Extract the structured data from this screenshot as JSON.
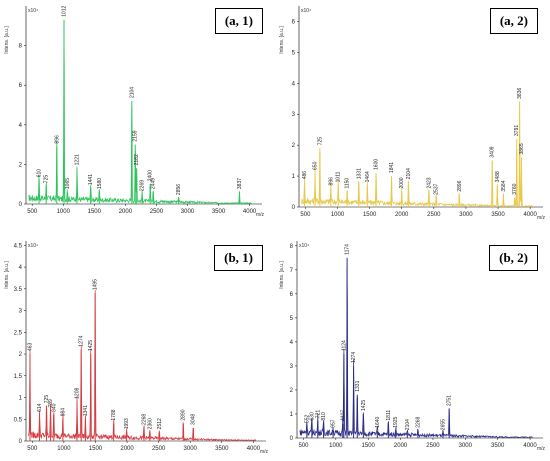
{
  "chart_data": [
    {
      "type": "line",
      "title": "(a, 1)",
      "ylabel": "Intens. [a.u.]",
      "xlabel": "m/z",
      "exponent": "x10⁴",
      "color": "#2bc45a",
      "xlim": [
        400,
        4200
      ],
      "ylim": [
        0,
        10
      ],
      "xticks": [
        500,
        1000,
        1500,
        2000,
        2500,
        3000,
        3500,
        4000
      ],
      "yticks": [
        0,
        2,
        4,
        6,
        8
      ],
      "peaks": [
        {
          "x": 610,
          "y": 1.2,
          "label": "610"
        },
        {
          "x": 725,
          "y": 0.9,
          "label": "725"
        },
        {
          "x": 896,
          "y": 2.9,
          "label": "896"
        },
        {
          "x": 1012,
          "y": 9.3,
          "label": "1012"
        },
        {
          "x": 1065,
          "y": 0.6,
          "label": "1065"
        },
        {
          "x": 1221,
          "y": 1.8,
          "label": "1221"
        },
        {
          "x": 1441,
          "y": 0.8,
          "label": "1441"
        },
        {
          "x": 1580,
          "y": 0.6,
          "label": "1580"
        },
        {
          "x": 2104,
          "y": 5.2,
          "label": "2104"
        },
        {
          "x": 2159,
          "y": 3.0,
          "label": "2159"
        },
        {
          "x": 2182,
          "y": 1.8,
          "label": "2182"
        },
        {
          "x": 2269,
          "y": 0.5,
          "label": "2269"
        },
        {
          "x": 2400,
          "y": 1.0,
          "label": "2400"
        },
        {
          "x": 2449,
          "y": 0.6,
          "label": "2449"
        },
        {
          "x": 2856,
          "y": 0.3,
          "label": "2856"
        },
        {
          "x": 3837,
          "y": 0.6,
          "label": "3837"
        }
      ]
    },
    {
      "type": "line",
      "title": "(a, 2)",
      "ylabel": "Intens. [a.u.]",
      "xlabel": "m/z",
      "exponent": "x10⁴",
      "color": "#e8c84a",
      "xlim": [
        400,
        4200
      ],
      "ylim": [
        0,
        6.5
      ],
      "xticks": [
        500,
        1000,
        1500,
        2000,
        2500,
        3000,
        3500,
        4000
      ],
      "yticks": [
        0,
        1,
        2,
        3,
        4,
        5,
        6
      ],
      "peaks": [
        {
          "x": 486,
          "y": 0.8,
          "label": "486"
        },
        {
          "x": 650,
          "y": 1.1,
          "label": "650"
        },
        {
          "x": 725,
          "y": 1.9,
          "label": "725"
        },
        {
          "x": 896,
          "y": 0.6,
          "label": "896"
        },
        {
          "x": 1011,
          "y": 0.7,
          "label": "1011"
        },
        {
          "x": 1150,
          "y": 0.5,
          "label": "1150"
        },
        {
          "x": 1331,
          "y": 0.8,
          "label": "1331"
        },
        {
          "x": 1464,
          "y": 0.7,
          "label": "1464"
        },
        {
          "x": 1600,
          "y": 1.1,
          "label": "1600"
        },
        {
          "x": 1841,
          "y": 1.0,
          "label": "1841"
        },
        {
          "x": 2000,
          "y": 0.5,
          "label": "2000"
        },
        {
          "x": 2104,
          "y": 0.8,
          "label": "2104"
        },
        {
          "x": 2423,
          "y": 0.5,
          "label": "2423"
        },
        {
          "x": 2537,
          "y": 0.3,
          "label": "2537"
        },
        {
          "x": 2896,
          "y": 0.4,
          "label": "2896"
        },
        {
          "x": 3409,
          "y": 1.5,
          "label": "3409"
        },
        {
          "x": 3488,
          "y": 0.7,
          "label": "3488"
        },
        {
          "x": 3584,
          "y": 0.4,
          "label": "3584"
        },
        {
          "x": 3760,
          "y": 0.3,
          "label": "3760"
        },
        {
          "x": 3791,
          "y": 2.2,
          "label": "3791"
        },
        {
          "x": 3836,
          "y": 3.4,
          "label": "3836"
        },
        {
          "x": 3865,
          "y": 1.6,
          "label": "3865"
        }
      ]
    },
    {
      "type": "line",
      "title": "(b, 1)",
      "ylabel": "Intens. [a.u.]",
      "xlabel": "m/z",
      "exponent": "x10⁴",
      "color": "#d43a3f",
      "xlim": [
        400,
        4200
      ],
      "ylim": [
        0,
        4.6
      ],
      "xticks": [
        500,
        1000,
        1500,
        2000,
        2500,
        3000,
        3500,
        4000
      ],
      "yticks": [
        0,
        0.5,
        1,
        1.5,
        2,
        2.5,
        3,
        3.5,
        4,
        4.5
      ],
      "peaks": [
        {
          "x": 463,
          "y": 2.0,
          "label": "463"
        },
        {
          "x": 614,
          "y": 0.6,
          "label": "614"
        },
        {
          "x": 725,
          "y": 0.8,
          "label": "725"
        },
        {
          "x": 789,
          "y": 0.7,
          "label": "789"
        },
        {
          "x": 840,
          "y": 0.6,
          "label": "840"
        },
        {
          "x": 984,
          "y": 0.5,
          "label": "984"
        },
        {
          "x": 1208,
          "y": 0.9,
          "label": "1208"
        },
        {
          "x": 1274,
          "y": 2.1,
          "label": "1274"
        },
        {
          "x": 1341,
          "y": 0.5,
          "label": "1341"
        },
        {
          "x": 1425,
          "y": 2.0,
          "label": "1425"
        },
        {
          "x": 1495,
          "y": 3.4,
          "label": "1495"
        },
        {
          "x": 1788,
          "y": 0.4,
          "label": "1788"
        },
        {
          "x": 1993,
          "y": 0.2,
          "label": "1993"
        },
        {
          "x": 2268,
          "y": 0.3,
          "label": "2268"
        },
        {
          "x": 2360,
          "y": 0.2,
          "label": "2360"
        },
        {
          "x": 2512,
          "y": 0.2,
          "label": "2512"
        },
        {
          "x": 2890,
          "y": 0.4,
          "label": "2890"
        },
        {
          "x": 3048,
          "y": 0.3,
          "label": "3048"
        }
      ]
    },
    {
      "type": "line",
      "title": "(b, 2)",
      "ylabel": "Intens. [a.u.]",
      "xlabel": "m/z",
      "exponent": "x10⁴",
      "color": "#2a2a86",
      "xlim": [
        400,
        4200
      ],
      "ylim": [
        0,
        8.2
      ],
      "xticks": [
        500,
        1000,
        1500,
        2000,
        2500,
        3000,
        3500,
        4000
      ],
      "yticks": [
        0,
        1,
        2,
        3,
        4,
        5,
        6,
        7,
        8
      ],
      "peaks": [
        {
          "x": 552,
          "y": 0.5,
          "label": "552"
        },
        {
          "x": 630,
          "y": 0.6,
          "label": "630"
        },
        {
          "x": 721,
          "y": 0.7,
          "label": "721"
        },
        {
          "x": 810,
          "y": 0.6,
          "label": "810"
        },
        {
          "x": 957,
          "y": 0.3,
          "label": "957"
        },
        {
          "x": 1107,
          "y": 0.6,
          "label": "1107"
        },
        {
          "x": 1124,
          "y": 3.5,
          "label": "1124"
        },
        {
          "x": 1174,
          "y": 7.5,
          "label": "1174"
        },
        {
          "x": 1274,
          "y": 3.0,
          "label": "1274"
        },
        {
          "x": 1331,
          "y": 1.8,
          "label": "1331"
        },
        {
          "x": 1425,
          "y": 1.0,
          "label": "1425"
        },
        {
          "x": 1640,
          "y": 0.3,
          "label": "1640"
        },
        {
          "x": 1811,
          "y": 0.6,
          "label": "1811"
        },
        {
          "x": 1925,
          "y": 0.3,
          "label": "1925"
        },
        {
          "x": 2104,
          "y": 0.2,
          "label": "2104"
        },
        {
          "x": 2268,
          "y": 0.3,
          "label": "2268"
        },
        {
          "x": 2655,
          "y": 0.2,
          "label": "2655"
        },
        {
          "x": 2751,
          "y": 1.2,
          "label": "2751"
        }
      ]
    }
  ]
}
